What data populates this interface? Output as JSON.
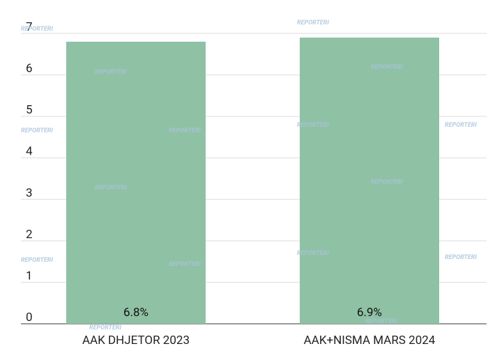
{
  "chart_data": {
    "type": "bar",
    "categories": [
      "AAK DHJETOR 2023",
      "AAK+NISMA MARS 2024"
    ],
    "values": [
      6.8,
      6.9
    ],
    "value_labels": [
      "6.8%",
      "6.9%"
    ],
    "color": "#8fc1a4",
    "ylim": [
      0,
      7
    ],
    "yticks": [
      0,
      1,
      2,
      3,
      4,
      5,
      6,
      7
    ],
    "grid": true,
    "watermark": "REPORTERI"
  }
}
